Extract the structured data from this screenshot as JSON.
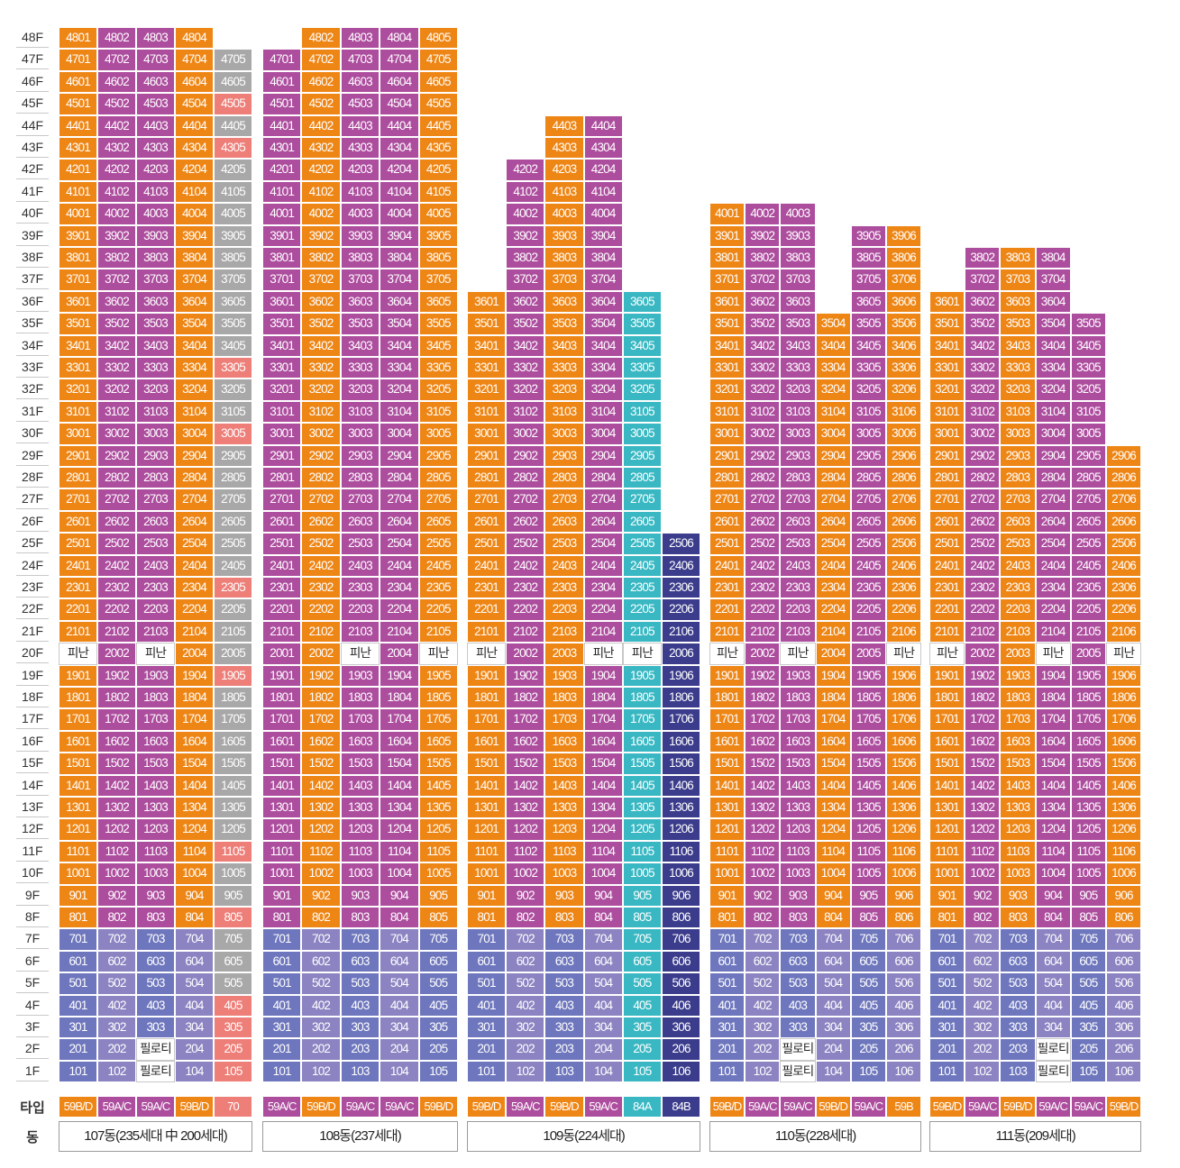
{
  "colors": {
    "orange": "#EE8616",
    "magenta": "#AD4D9E",
    "periwinkle": "#6E77BD",
    "lavender": "#8C84C2",
    "gray": "#A8A8A8",
    "salmon": "#EE7E78",
    "teal": "#39B8C3",
    "navy": "#3B3C8C",
    "refuge_bg": "#FFFFFF"
  },
  "row_labels": {
    "type": "타입",
    "building": "동"
  },
  "floor_labels": [
    "48F",
    "47F",
    "46F",
    "45F",
    "44F",
    "43F",
    "42F",
    "41F",
    "40F",
    "39F",
    "38F",
    "37F",
    "36F",
    "35F",
    "34F",
    "33F",
    "32F",
    "31F",
    "30F",
    "29F",
    "28F",
    "27F",
    "26F",
    "25F",
    "24F",
    "23F",
    "22F",
    "21F",
    "20F",
    "19F",
    "18F",
    "17F",
    "16F",
    "15F",
    "14F",
    "13F",
    "12F",
    "11F",
    "10F",
    "9F",
    "8F",
    "7F",
    "6F",
    "5F",
    "4F",
    "3F",
    "2F",
    "1F"
  ],
  "refuge_text": "피난",
  "piloti_text": "필로티",
  "buildings": [
    {
      "name": "107동(235세대 中 200세대)",
      "lines": [
        {
          "line": 1,
          "type": "59B/D",
          "type_color": "orange",
          "top": 48,
          "color": "orange",
          "refuge20": true
        },
        {
          "line": 2,
          "type": "59A/C",
          "type_color": "magenta",
          "top": 48,
          "color": "magenta"
        },
        {
          "line": 3,
          "type": "59A/C",
          "type_color": "magenta",
          "top": 48,
          "color": "magenta",
          "refuge20": true,
          "piloti": [
            1,
            2
          ]
        },
        {
          "line": 4,
          "type": "59B/D",
          "type_color": "orange",
          "top": 48,
          "color": "orange"
        },
        {
          "line": 5,
          "type": "70",
          "type_color": "salmon",
          "top": 47,
          "color": "gray",
          "low_color": "gray",
          "salmon_floors": [
            45,
            43,
            33,
            30,
            23,
            19,
            11,
            8,
            4,
            3,
            2,
            1
          ]
        }
      ]
    },
    {
      "name": "108동(237세대)",
      "lines": [
        {
          "line": 1,
          "type": "59A/C",
          "type_color": "magenta",
          "top": 47,
          "color": "magenta"
        },
        {
          "line": 2,
          "type": "59B/D",
          "type_color": "orange",
          "top": 48,
          "color": "orange"
        },
        {
          "line": 3,
          "type": "59A/C",
          "type_color": "magenta",
          "top": 48,
          "color": "magenta",
          "refuge20": true
        },
        {
          "line": 4,
          "type": "59A/C",
          "type_color": "magenta",
          "top": 48,
          "color": "magenta"
        },
        {
          "line": 5,
          "type": "59B/D",
          "type_color": "orange",
          "top": 48,
          "color": "orange",
          "refuge20": true
        }
      ]
    },
    {
      "name": "109동(224세대)",
      "lines": [
        {
          "line": 1,
          "type": "59B/D",
          "type_color": "orange",
          "top": 36,
          "color": "orange",
          "refuge20": true
        },
        {
          "line": 2,
          "type": "59A/C",
          "type_color": "magenta",
          "top": 42,
          "color": "magenta"
        },
        {
          "line": 3,
          "type": "59B/D",
          "type_color": "orange",
          "top": 44,
          "color": "orange"
        },
        {
          "line": 4,
          "type": "59A/C",
          "type_color": "magenta",
          "top": 44,
          "color": "magenta",
          "refuge20": true
        },
        {
          "line": 5,
          "type": "84A",
          "type_color": "teal",
          "top": 36,
          "color": "teal",
          "low_color": "teal",
          "refuge20": true
        },
        {
          "line": 6,
          "type": "84B",
          "type_color": "navy",
          "top": 25,
          "color": "navy",
          "low_color": "navy"
        }
      ]
    },
    {
      "name": "110동(228세대)",
      "lines": [
        {
          "line": 1,
          "type": "59B/D",
          "type_color": "orange",
          "top": 40,
          "color": "orange",
          "refuge20": true
        },
        {
          "line": 2,
          "type": "59A/C",
          "type_color": "magenta",
          "top": 40,
          "color": "magenta"
        },
        {
          "line": 3,
          "type": "59A/C",
          "type_color": "magenta",
          "top": 40,
          "color": "magenta",
          "refuge20": true,
          "piloti": [
            1,
            2
          ]
        },
        {
          "line": 4,
          "type": "59B/D",
          "type_color": "orange",
          "top": 35,
          "color": "orange"
        },
        {
          "line": 5,
          "type": "59A/C",
          "type_color": "magenta",
          "top": 39,
          "color": "magenta"
        },
        {
          "line": 6,
          "type": "59B",
          "type_color": "orange",
          "top": 39,
          "color": "orange",
          "refuge20": true
        }
      ]
    },
    {
      "name": "111동(209세대)",
      "lines": [
        {
          "line": 1,
          "type": "59B/D",
          "type_color": "orange",
          "top": 36,
          "color": "orange",
          "refuge20": true
        },
        {
          "line": 2,
          "type": "59A/C",
          "type_color": "magenta",
          "top": 38,
          "color": "magenta"
        },
        {
          "line": 3,
          "type": "59B/D",
          "type_color": "orange",
          "top": 38,
          "color": "orange"
        },
        {
          "line": 4,
          "type": "59A/C",
          "type_color": "magenta",
          "top": 38,
          "color": "magenta",
          "refuge20": true,
          "piloti": [
            1,
            2
          ]
        },
        {
          "line": 5,
          "type": "59A/C",
          "type_color": "magenta",
          "top": 35,
          "color": "magenta"
        },
        {
          "line": 6,
          "type": "59B/D",
          "type_color": "orange",
          "top": 29,
          "color": "orange",
          "refuge20": true
        }
      ]
    }
  ]
}
